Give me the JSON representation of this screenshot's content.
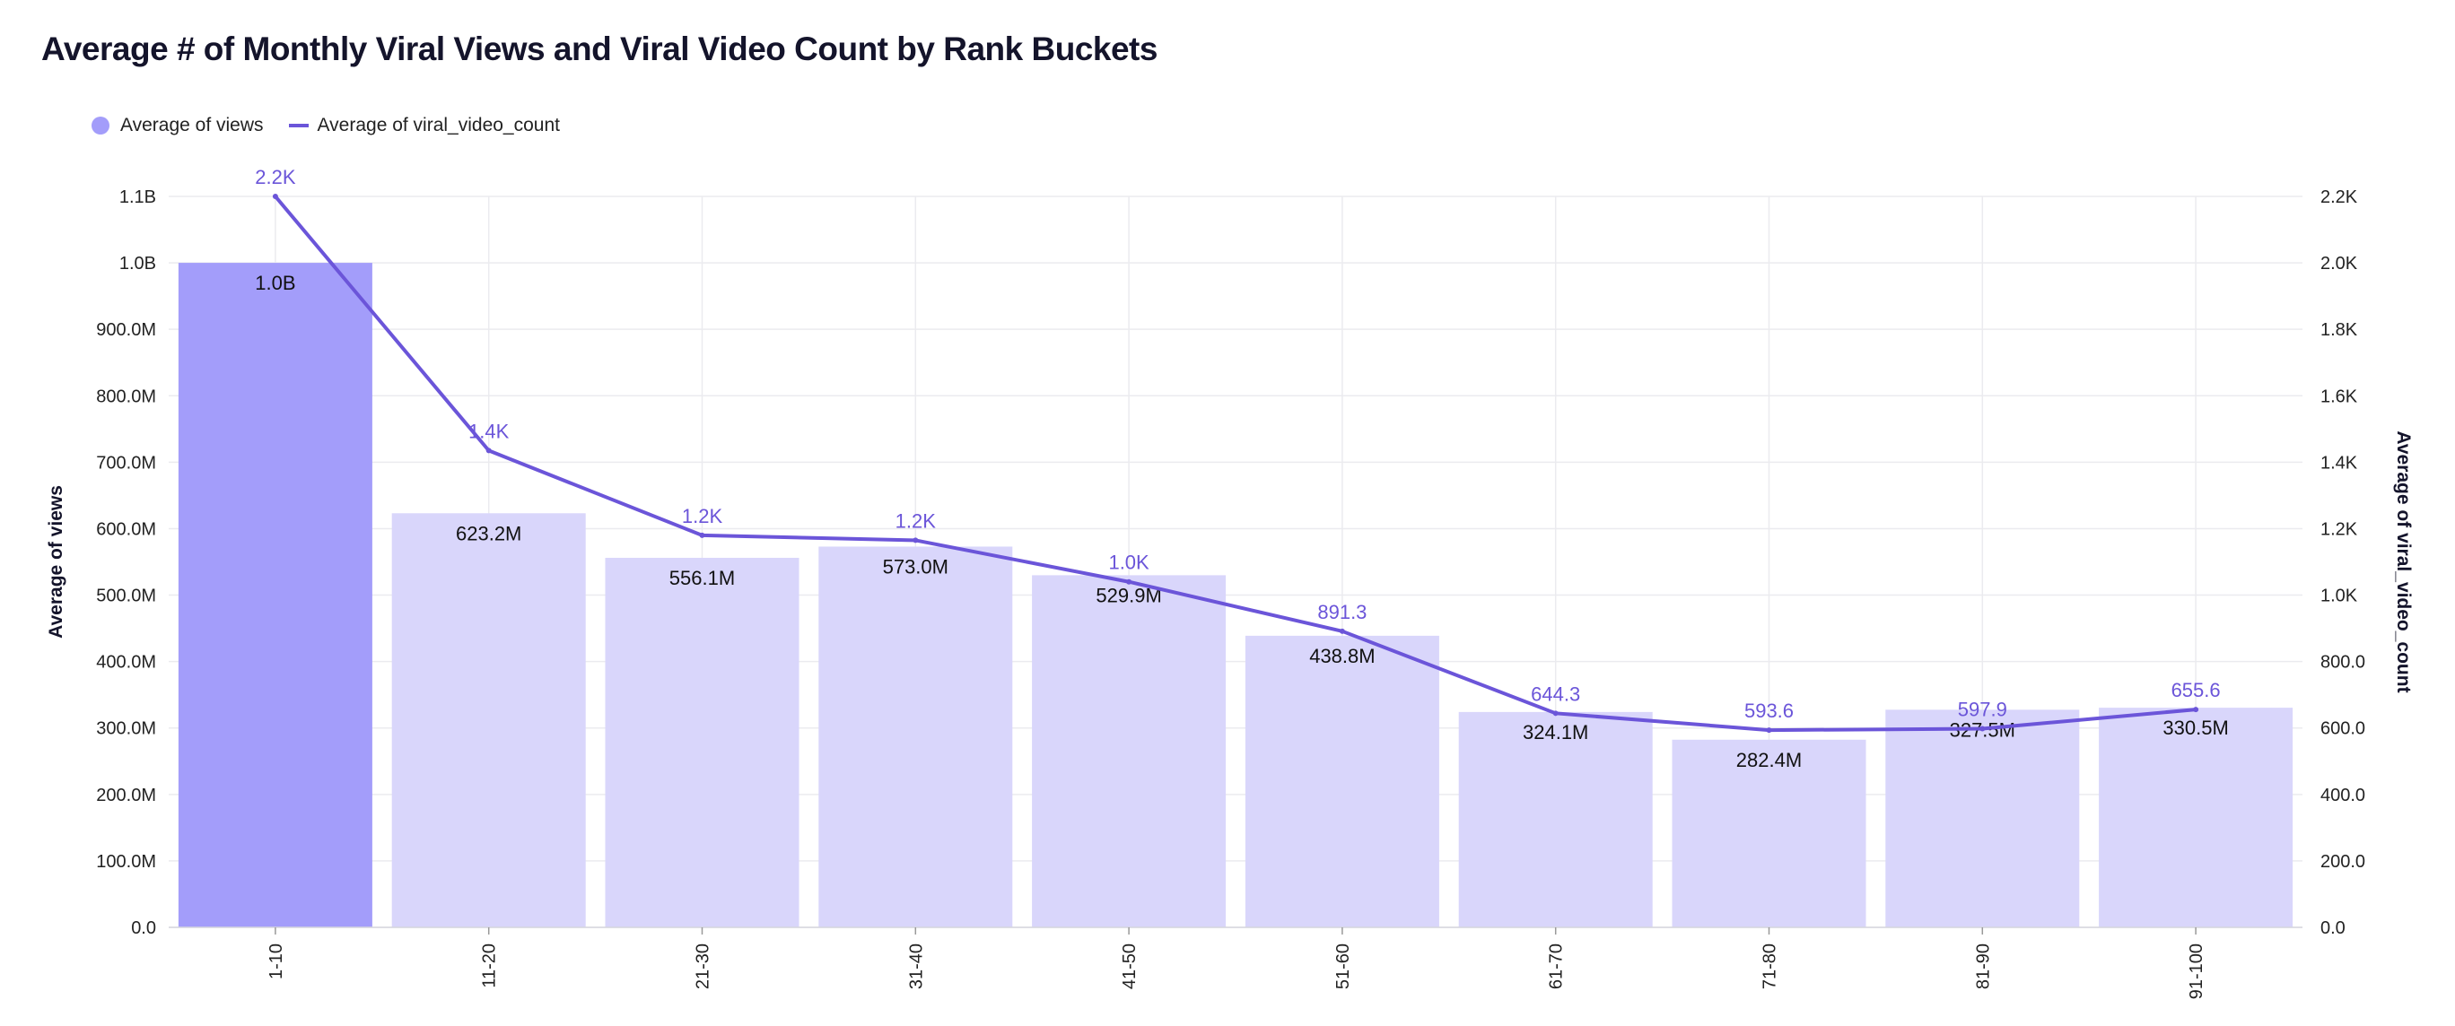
{
  "chart_data": {
    "type": "bar",
    "title": "Average # of Monthly Viral Views and Viral Video Count by Rank Buckets",
    "categories": [
      "1-10",
      "11-20",
      "21-30",
      "31-40",
      "41-50",
      "51-60",
      "61-70",
      "71-80",
      "81-90",
      "91-100"
    ],
    "ylabel": "Average of views",
    "y2label": "Average of viral_video_count",
    "ylim": [
      0,
      1100000000
    ],
    "y2lim": [
      0,
      2200
    ],
    "yticks": [
      "0.0",
      "100.0M",
      "200.0M",
      "300.0M",
      "400.0M",
      "500.0M",
      "600.0M",
      "700.0M",
      "800.0M",
      "900.0M",
      "1.0B",
      "1.1B"
    ],
    "y2ticks": [
      "0.0",
      "200.0",
      "400.0",
      "600.0",
      "800.0",
      "1.0K",
      "1.2K",
      "1.4K",
      "1.6K",
      "1.8K",
      "2.0K",
      "2.2K"
    ],
    "grid": true,
    "legend_position": "top-left",
    "series": [
      {
        "name": "Average of views",
        "type": "bar",
        "axis": "left",
        "values": [
          1000000000,
          623200000,
          556100000,
          573000000,
          529900000,
          438800000,
          324100000,
          282400000,
          327500000,
          330500000
        ],
        "labels": [
          "1.0B",
          "623.2M",
          "556.1M",
          "573.0M",
          "529.9M",
          "438.8M",
          "324.1M",
          "282.4M",
          "327.5M",
          "330.5M"
        ],
        "color": "#a39dfa",
        "highlight_color": "#a39dfa",
        "muted_color": "#d9d6fb",
        "highlighted_index": 0
      },
      {
        "name": "Average of viral_video_count",
        "type": "line",
        "axis": "right",
        "values": [
          2200,
          1435,
          1180,
          1165,
          1040,
          891.3,
          644.3,
          593.6,
          597.9,
          655.6
        ],
        "labels": [
          "2.2K",
          "1.4K",
          "1.2K",
          "1.2K",
          "1.0K",
          "891.3",
          "644.3",
          "593.6",
          "597.9",
          "655.6"
        ],
        "color": "#6b55d9"
      }
    ]
  }
}
